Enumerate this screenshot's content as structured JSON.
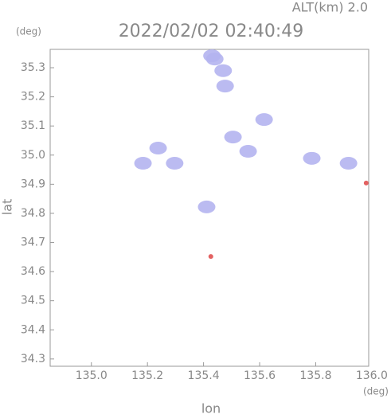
{
  "chart_data": {
    "type": "scatter",
    "title": "2022/02/02 02:40:49",
    "subtitle": "ALT(km) 2.0",
    "y_unit": "(deg)",
    "x_unit": "(deg)",
    "x_label": "lon",
    "y_label": "lat",
    "xlim": [
      134.853,
      135.989
    ],
    "ylim": [
      34.275,
      35.363
    ],
    "xticks": [
      {
        "value": 135.0,
        "label": "135.0"
      },
      135.2,
      135.4,
      135.6,
      135.8,
      {
        "value": 136.0,
        "label": "136.0"
      }
    ],
    "yticks": [
      {
        "value": 34.3,
        "label": "34.3"
      },
      34.4,
      34.5,
      34.6,
      34.7,
      34.8,
      34.9,
      {
        "value": 35.0,
        "label": "35.0"
      },
      35.1,
      35.2,
      35.3
    ],
    "series": [
      {
        "color": "#b4b4f0",
        "x": [
          135.44,
          135.47,
          135.43,
          135.477,
          135.616,
          135.505,
          135.559,
          135.184,
          135.238,
          135.297,
          135.411,
          135.786,
          135.917
        ],
        "y": [
          35.33,
          35.29,
          35.341,
          35.237,
          35.122,
          35.062,
          35.013,
          34.972,
          35.024,
          34.972,
          34.822,
          34.989,
          34.972
        ]
      },
      {
        "color": "#e05050",
        "x": [
          135.426,
          135.98
        ],
        "y": [
          34.652,
          34.904
        ]
      }
    ]
  }
}
